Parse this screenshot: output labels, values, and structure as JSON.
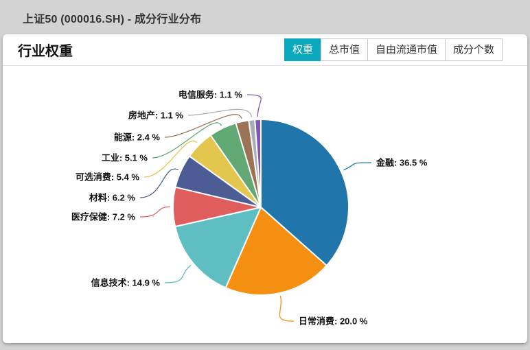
{
  "page": {
    "title": "上证50 (000016.SH) - 成分行业分布"
  },
  "card": {
    "title": "行业权重",
    "tabs": [
      {
        "label": "权重",
        "active": true
      },
      {
        "label": "总市值",
        "active": false
      },
      {
        "label": "自由流通市值",
        "active": false
      },
      {
        "label": "成分个数",
        "active": false
      }
    ]
  },
  "colors": {
    "accent_teal": "#0aa8bd",
    "page_background": "#d3d3d3",
    "card_background": "#ffffff"
  },
  "chart_data": {
    "type": "pie",
    "title": "行业权重",
    "unit": "%",
    "start_angle_deg": 90,
    "direction": "clockwise",
    "legend_position": "outside-labels",
    "slices": [
      {
        "label": "金融",
        "value": 36.5,
        "display": "金融: 36.5 %",
        "color": "#2076ab"
      },
      {
        "label": "日常消费",
        "value": 20.0,
        "display": "日常消费: 20.0 %",
        "color": "#f58f11"
      },
      {
        "label": "信息技术",
        "value": 14.9,
        "display": "信息技术: 14.9 %",
        "color": "#5fbec1"
      },
      {
        "label": "医疗保健",
        "value": 7.2,
        "display": "医疗保健: 7.2 %",
        "color": "#e05d5d"
      },
      {
        "label": "材料",
        "value": 6.2,
        "display": "材料: 6.2 %",
        "color": "#4c5c94"
      },
      {
        "label": "可选消费",
        "value": 5.4,
        "display": "可选消费: 5.4 %",
        "color": "#e3c64e"
      },
      {
        "label": "工业",
        "value": 5.1,
        "display": "工业: 5.1 %",
        "color": "#61a875"
      },
      {
        "label": "能源",
        "value": 2.4,
        "display": "能源: 2.4 %",
        "color": "#9b7355"
      },
      {
        "label": "房地产",
        "value": 1.1,
        "display": "房地产: 1.1 %",
        "color": "#a9aeb4"
      },
      {
        "label": "电信服务",
        "value": 1.1,
        "display": "电信服务: 1.1 %",
        "color": "#7e57c2"
      }
    ]
  }
}
